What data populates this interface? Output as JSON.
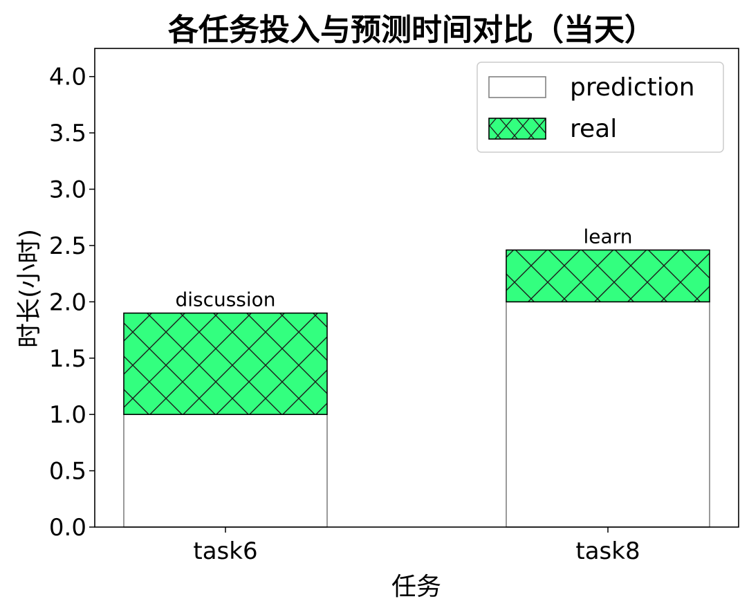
{
  "chart_data": {
    "type": "bar",
    "stacked": true,
    "title": "各任务投入与预测时间对比（当天）",
    "xlabel": "任务",
    "ylabel": "时长(小时)",
    "categories": [
      "task6",
      "task8"
    ],
    "bar_labels": [
      "discussion",
      "learn"
    ],
    "series": [
      {
        "name": "prediction",
        "values": [
          1.0,
          2.0
        ],
        "color": "#ffffff",
        "edgecolor": "#808080",
        "hatch": "none"
      },
      {
        "name": "real",
        "values": [
          0.9,
          0.46
        ],
        "color": "#33ff7f",
        "edgecolor": "#000000",
        "hatch": "x"
      }
    ],
    "ylim": [
      0,
      4.25
    ],
    "yticks": [
      "0.0",
      "0.5",
      "1.0",
      "1.5",
      "2.0",
      "2.5",
      "3.0",
      "3.5",
      "4.0"
    ],
    "grid": false,
    "legend_position": "top-right"
  }
}
